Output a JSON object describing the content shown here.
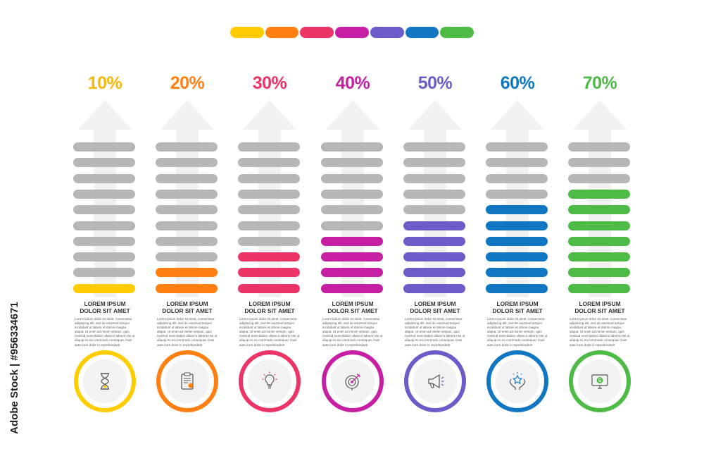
{
  "palette": [
    "#ffcc00",
    "#ff7f11",
    "#ec3566",
    "#c71fa3",
    "#6c5cc9",
    "#1177c3",
    "#4dbb45"
  ],
  "columns": [
    {
      "percent_label": "10%",
      "percent": 10,
      "color": "#f5b80c",
      "bar_color": "#ffcc00",
      "heading_line1": "LOREM IPSUM",
      "heading_line2": "DOLOR SIT AMET",
      "body": "Lorem ipsum dolor sit amet, consectetur adipiscing elit, sed do eiusmod tempor incididunt ut labore et dolore magna aliqua. Ut enim ad minim veniam, quis nostrud exercitation ullamco laboris nisi ut aliquip ex ea commodo consequat. Duis aute irure dolor in reprehenderit",
      "icon": "hourglass-icon"
    },
    {
      "percent_label": "20%",
      "percent": 20,
      "color": "#ff7f11",
      "bar_color": "#ff7f11",
      "heading_line1": "LOREM IPSUM",
      "heading_line2": "DOLOR SIT AMET",
      "body": "Lorem ipsum dolor sit amet, consectetur adipiscing elit, sed do eiusmod tempor incididunt ut labore et dolore magna aliqua. Ut enim ad minim veniam, quis nostrud exercitation ullamco laboris nisi ut aliquip ex ea commodo consequat. Duis aute irure dolor in reprehenderit",
      "icon": "clipboard-document-icon"
    },
    {
      "percent_label": "30%",
      "percent": 30,
      "color": "#ec3566",
      "bar_color": "#ec3566",
      "heading_line1": "LOREM IPSUM",
      "heading_line2": "DOLOR SIT AMET",
      "body": "Lorem ipsum dolor sit amet, consectetur adipiscing elit, sed do eiusmod tempor incididunt ut labore et dolore magna aliqua. Ut enim ad minim veniam, quis nostrud exercitation ullamco laboris nisi ut aliquip ex ea commodo consequat. Duis aute irure dolor in reprehenderit",
      "icon": "lightbulb-icon"
    },
    {
      "percent_label": "40%",
      "percent": 40,
      "color": "#c71fa3",
      "bar_color": "#c71fa3",
      "heading_line1": "LOREM IPSUM",
      "heading_line2": "DOLOR SIT AMET",
      "body": "Lorem ipsum dolor sit amet, consectetur adipiscing elit, sed do eiusmod tempor incididunt ut labore et dolore magna aliqua. Ut enim ad minim veniam, quis nostrud exercitation ullamco laboris nisi ut aliquip ex ea commodo consequat. Duis aute irure dolor in reprehenderit",
      "icon": "target-dart-icon"
    },
    {
      "percent_label": "50%",
      "percent": 50,
      "color": "#6c5cc9",
      "bar_color": "#6c5cc9",
      "heading_line1": "LOREM IPSUM",
      "heading_line2": "DOLOR SIT AMET",
      "body": "Lorem ipsum dolor sit amet, consectetur adipiscing elit, sed do eiusmod tempor incididunt ut labore et dolore magna aliqua. Ut enim ad minim veniam, quis nostrud exercitation ullamco laboris nisi ut aliquip ex ea commodo consequat. Duis aute irure dolor in reprehenderit",
      "icon": "megaphone-icon"
    },
    {
      "percent_label": "60%",
      "percent": 60,
      "color": "#1177c3",
      "bar_color": "#1177c3",
      "heading_line1": "LOREM IPSUM",
      "heading_line2": "DOLOR SIT AMET",
      "body": "Lorem ipsum dolor sit amet, consectetur adipiscing elit, sed do eiusmod tempor incididunt ut labore et dolore magna aliqua. Ut enim ad minim veniam, quis nostrud exercitation ullamco laboris nisi ut aliquip ex ea commodo consequat. Duis aute irure dolor in reprehenderit",
      "icon": "hands-star-icon"
    },
    {
      "percent_label": "70%",
      "percent": 70,
      "color": "#4dbb45",
      "bar_color": "#4dbb45",
      "heading_line1": "LOREM IPSUM",
      "heading_line2": "DOLOR SIT AMET",
      "body": "Lorem ipsum dolor sit amet, consectetur adipiscing elit, sed do eiusmod tempor incididunt ut labore et dolore magna aliqua. Ut enim ad minim veniam, quis nostrud exercitation ullamco laboris nisi ut aliquip ex ea commodo consequat. Duis aute irure dolor in reprehenderit",
      "icon": "monitor-dollar-icon"
    }
  ],
  "bar_count": 10,
  "inactive_bar_color": "#b7b7b7",
  "arrow_color": "#f1f1f1",
  "watermark": "Adobe Stock | #956334671"
}
